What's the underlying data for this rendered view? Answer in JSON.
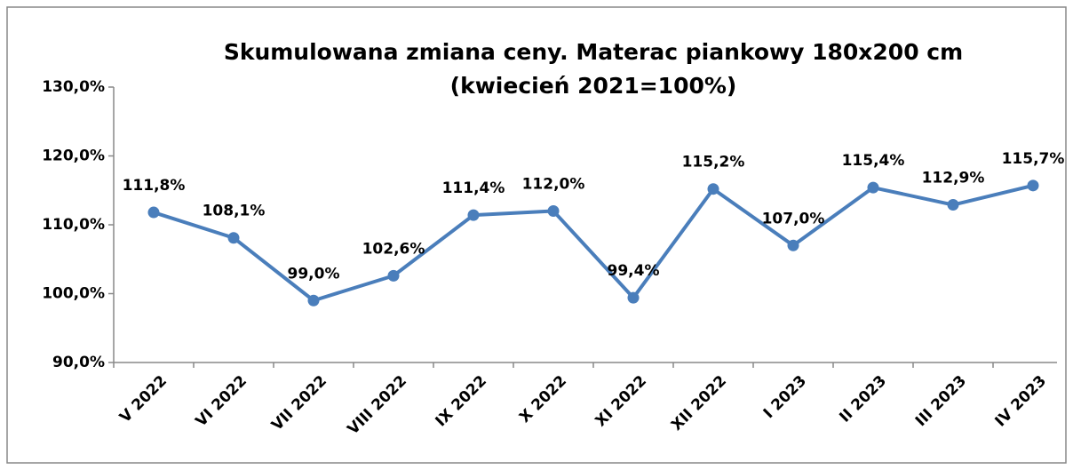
{
  "chart_data": {
    "type": "line",
    "title": [
      "Skumulowana zmiana ceny. Materac piankowy 180x200 cm",
      "(kwiecień 2021=100%)"
    ],
    "categories": [
      "V 2022",
      "VI 2022",
      "VII 2022",
      "VIII 2022",
      "IX 2022",
      "X 2022",
      "XI 2022",
      "XII 2022",
      "I 2023",
      "II 2023",
      "III 2023",
      "IV 2023"
    ],
    "series": [
      {
        "color": "#4a7ebb",
        "values": [
          111.8,
          108.1,
          99.0,
          102.6,
          111.4,
          112.0,
          99.4,
          115.2,
          107.0,
          115.4,
          112.9,
          115.7
        ],
        "value_labels": [
          "111,8%",
          "108,1%",
          "99,0%",
          "102,6%",
          "111,4%",
          "112,0%",
          "99,4%",
          "115,2%",
          "107,0%",
          "115,4%",
          "112,9%",
          "115,7%"
        ]
      }
    ],
    "ylim": [
      90,
      130
    ],
    "yticks": [
      {
        "value": 90,
        "label": "90,0%"
      },
      {
        "value": 100,
        "label": "100,0%"
      },
      {
        "value": 110,
        "label": "110,0%"
      },
      {
        "value": 120,
        "label": "120,0%"
      },
      {
        "value": 130,
        "label": "130,0%"
      }
    ]
  }
}
